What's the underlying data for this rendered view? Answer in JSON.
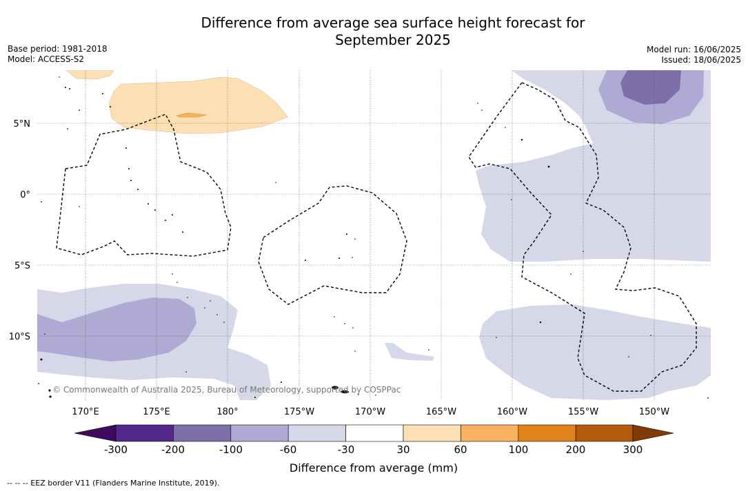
{
  "title_line1": "Difference from average sea surface height forecast for",
  "title_line2": "September 2025",
  "meta_left": {
    "base_period": "Base period: 1981-2018",
    "model": "Model: ACCESS-S2"
  },
  "meta_right": {
    "model_run": "Model run: 16/06/2025",
    "issued": "Issued: 18/06/2025"
  },
  "lat_labels": [
    "5°N",
    "0°",
    "5°S",
    "10°S"
  ],
  "lon_labels": [
    "170°E",
    "175°E",
    "180°",
    "175°W",
    "170°W",
    "165°W",
    "160°W",
    "155°W",
    "150°W"
  ],
  "copyright": "© Commonwealth of Australia 2025, Bureau of Meteorology, supported by COSPPac",
  "colorbar": {
    "title": "Difference from average (mm)",
    "ticks": [
      "-300",
      "-200",
      "-100",
      "-60",
      "-30",
      "30",
      "60",
      "100",
      "200",
      "300"
    ],
    "colors": {
      "below_min": "#3f0a5e",
      "c1": "#54288c",
      "c2": "#7e6faa",
      "c3": "#aeaad3",
      "c4": "#d7d7ea",
      "c5": "#ffffff",
      "c6": "#fddfb4",
      "c7": "#f8b25f",
      "c8": "#e1821b",
      "c9": "#b35a0c",
      "above_max": "#803c04"
    }
  },
  "footer": "--  --  -- EEZ border V11 (Flanders Marine Institute, 2019)."
}
